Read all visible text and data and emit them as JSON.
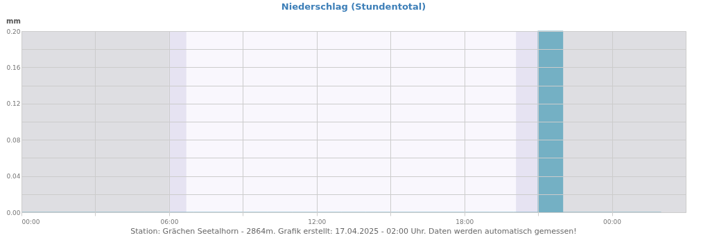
{
  "chart_data": {
    "type": "bar",
    "title": "Niederschlag (Stundentotal)",
    "ylabel": "mm",
    "x": [
      0.5,
      1.5,
      2.5,
      3.5,
      4.5,
      5.5,
      6.5,
      7.5,
      8.5,
      9.5,
      10.5,
      11.5,
      12.5,
      13.5,
      14.5,
      15.5,
      16.5,
      17.5,
      18.5,
      19.5,
      20.5,
      21.5,
      22.5,
      23.5,
      24.5,
      25.5
    ],
    "series": [
      {
        "color": "#74b0c4",
        "values": [
          0,
          0,
          0,
          0,
          0,
          0,
          0,
          0,
          0,
          0,
          0,
          0,
          0,
          0,
          0,
          0,
          0,
          0,
          0,
          0,
          0,
          0.2,
          0,
          0,
          0,
          0
        ]
      }
    ],
    "xlim": [
      0,
      27
    ],
    "xticks": [
      {
        "value": 0,
        "label": "00:00"
      },
      {
        "value": 3,
        "label": null
      },
      {
        "value": 6,
        "label": "06:00"
      },
      {
        "value": 9,
        "label": null
      },
      {
        "value": 12,
        "label": "12:00"
      },
      {
        "value": 15,
        "label": null
      },
      {
        "value": 18,
        "label": "18:00"
      },
      {
        "value": 21,
        "label": null
      },
      {
        "value": 24,
        "label": "00:00"
      }
    ],
    "ylim": [
      0,
      0.2
    ],
    "yticks": [
      {
        "value": 0,
        "label": "0.00"
      },
      {
        "value": 0.02,
        "label": null
      },
      {
        "value": 0.04,
        "label": "0.04"
      },
      {
        "value": 0.06,
        "label": null
      },
      {
        "value": 0.08,
        "label": "0.08"
      },
      {
        "value": 0.1,
        "label": null
      },
      {
        "value": 0.12,
        "label": "0.12"
      },
      {
        "value": 0.14,
        "label": null
      },
      {
        "value": 0.16,
        "label": "0.16"
      },
      {
        "value": 0.18,
        "label": null
      },
      {
        "value": 0.2,
        "label": "0.20"
      }
    ],
    "bands": [
      {
        "axis": "x",
        "from": 0,
        "to": 6,
        "color": "#dedee2"
      },
      {
        "axis": "x",
        "from": 6,
        "to": 6.7,
        "color": "#e6e3f2"
      },
      {
        "axis": "x",
        "from": 20.1,
        "to": 21,
        "color": "#e6e3f2"
      },
      {
        "axis": "x",
        "from": 21,
        "to": 27,
        "color": "#dedee2"
      }
    ],
    "grid": true,
    "annotations": [
      "Station: Grächen Seetalhorn - 2864m. Grafik erstellt: 17.04.2025 - 02:00 Uhr. Daten werden automatisch gemessen!"
    ]
  }
}
